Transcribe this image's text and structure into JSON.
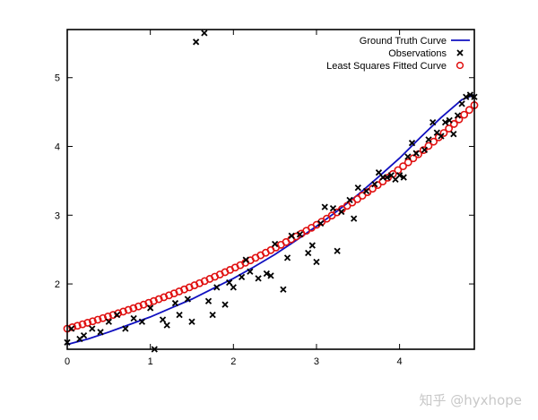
{
  "watermark": "知乎 @hyxhope",
  "chart_data": {
    "type": "scatter",
    "xlim": [
      0,
      4.9
    ],
    "ylim": [
      1.05,
      5.7
    ],
    "xticks": [
      0,
      1,
      2,
      3,
      4
    ],
    "yticks": [
      2,
      3,
      4,
      5
    ],
    "grid": false,
    "legend_position": "top-right",
    "colors": {
      "ground_truth": "#1010c0",
      "observations": "#000000",
      "fitted": "#e01010"
    },
    "series": [
      {
        "name": "Ground Truth Curve",
        "kind": "line",
        "x": [
          0,
          0.25,
          0.5,
          0.75,
          1.0,
          1.25,
          1.5,
          1.75,
          2.0,
          2.25,
          2.5,
          2.75,
          3.0,
          3.25,
          3.5,
          3.75,
          4.0,
          4.25,
          4.5,
          4.75,
          4.9
        ],
        "y": [
          1.12,
          1.2,
          1.3,
          1.41,
          1.52,
          1.65,
          1.78,
          1.93,
          2.08,
          2.25,
          2.43,
          2.63,
          2.84,
          3.06,
          3.3,
          3.56,
          3.83,
          4.13,
          4.42,
          4.68,
          4.75
        ]
      },
      {
        "name": "Observations",
        "kind": "points",
        "marker": "x",
        "x": [
          0.0,
          0.05,
          0.15,
          0.2,
          0.3,
          0.4,
          0.5,
          0.6,
          0.7,
          0.8,
          0.9,
          1.0,
          1.05,
          1.15,
          1.2,
          1.3,
          1.35,
          1.45,
          1.5,
          1.55,
          1.65,
          1.7,
          1.75,
          1.8,
          1.9,
          1.95,
          2.0,
          2.1,
          2.15,
          2.2,
          2.3,
          2.4,
          2.45,
          2.5,
          2.6,
          2.65,
          2.7,
          2.8,
          2.9,
          2.95,
          3.0,
          3.05,
          3.1,
          3.2,
          3.25,
          3.3,
          3.4,
          3.45,
          3.5,
          3.6,
          3.7,
          3.75,
          3.8,
          3.85,
          3.9,
          3.95,
          4.0,
          4.05,
          4.1,
          4.15,
          4.2,
          4.3,
          4.35,
          4.4,
          4.45,
          4.5,
          4.55,
          4.6,
          4.65,
          4.7,
          4.75,
          4.8,
          4.85,
          4.9
        ],
        "y": [
          1.15,
          1.35,
          1.2,
          1.25,
          1.35,
          1.3,
          1.45,
          1.55,
          1.35,
          1.5,
          1.45,
          1.65,
          1.05,
          1.48,
          1.4,
          1.72,
          1.55,
          1.78,
          1.45,
          5.52,
          5.65,
          1.75,
          1.55,
          1.95,
          1.7,
          2.02,
          1.95,
          2.1,
          2.35,
          2.18,
          2.08,
          2.15,
          2.12,
          2.58,
          1.92,
          2.38,
          2.7,
          2.72,
          2.45,
          2.56,
          2.32,
          2.88,
          3.12,
          3.1,
          2.48,
          3.05,
          3.22,
          2.95,
          3.4,
          3.35,
          3.45,
          3.62,
          3.55,
          3.55,
          3.58,
          3.52,
          3.58,
          3.55,
          3.85,
          4.05,
          3.9,
          3.95,
          4.1,
          4.35,
          4.2,
          4.15,
          4.35,
          4.38,
          4.18,
          4.45,
          4.62,
          4.72,
          4.75,
          4.72
        ]
      },
      {
        "name": "Least Squares Fitted Curve",
        "kind": "points",
        "marker": "o",
        "x": [
          0,
          4.9
        ],
        "y": [
          1.35,
          4.6
        ]
      }
    ]
  }
}
